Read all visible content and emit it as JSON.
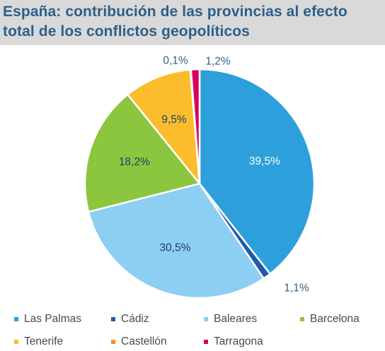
{
  "title": {
    "line1": "España: contribución de las provincias al efecto",
    "line2": "total de los conflictos geopolíticos"
  },
  "colors": {
    "title": "#2e5f8a",
    "title_band": "#d9d9d9",
    "label_inside": "#1f3e73",
    "label_inside_light": "#ffffff",
    "label_outside": "#2e5f8a",
    "slice_border": "#ffffff"
  },
  "chart_data": {
    "type": "pie",
    "title": "España: contribución de las provincias al efecto total de los conflictos geopolíticos",
    "start_angle_deg": 0,
    "direction": "clockwise",
    "legend_position": "bottom",
    "slices": [
      {
        "name": "Las Palmas",
        "value": 39.5,
        "label": "39,5%",
        "color": "#2d9fdb",
        "label_placement": "inside",
        "label_color": "#ffffff"
      },
      {
        "name": "Cádiz",
        "value": 1.1,
        "label": "1,1%",
        "color": "#1f5aa6",
        "label_placement": "outside",
        "label_color": "#2e5f8a"
      },
      {
        "name": "Baleares",
        "value": 30.5,
        "label": "30,5%",
        "color": "#8dcff2",
        "label_placement": "inside",
        "label_color": "#1f3e73"
      },
      {
        "name": "Barcelona",
        "value": 18.2,
        "label": "18,2%",
        "color": "#8cc63f",
        "label_placement": "inside",
        "label_color": "#1f3e73"
      },
      {
        "name": "Tenerife",
        "value": 9.5,
        "label": "9,5%",
        "color": "#fbbd2c",
        "label_placement": "inside",
        "label_color": "#1f3e73"
      },
      {
        "name": "Castellón",
        "value": 0.1,
        "label": "0,1%",
        "color": "#f7931e",
        "label_placement": "outside",
        "label_color": "#2e5f8a"
      },
      {
        "name": "Tarragona",
        "value": 1.2,
        "label": "1,2%",
        "color": "#d6005e",
        "label_placement": "outside",
        "label_color": "#2e5f8a"
      }
    ]
  },
  "legend": {
    "row1": [
      {
        "label": "Las Palmas",
        "color": "#2d9fdb"
      },
      {
        "label": "Cádiz",
        "color": "#1f5aa6"
      },
      {
        "label": "Baleares",
        "color": "#8dcff2"
      },
      {
        "label": "Barcelona",
        "color": "#8cc63f"
      }
    ],
    "row2": [
      {
        "label": "Tenerife",
        "color": "#fbbd2c"
      },
      {
        "label": "Castellón",
        "color": "#f7931e"
      },
      {
        "label": "Tarragona",
        "color": "#d6005e"
      }
    ]
  }
}
